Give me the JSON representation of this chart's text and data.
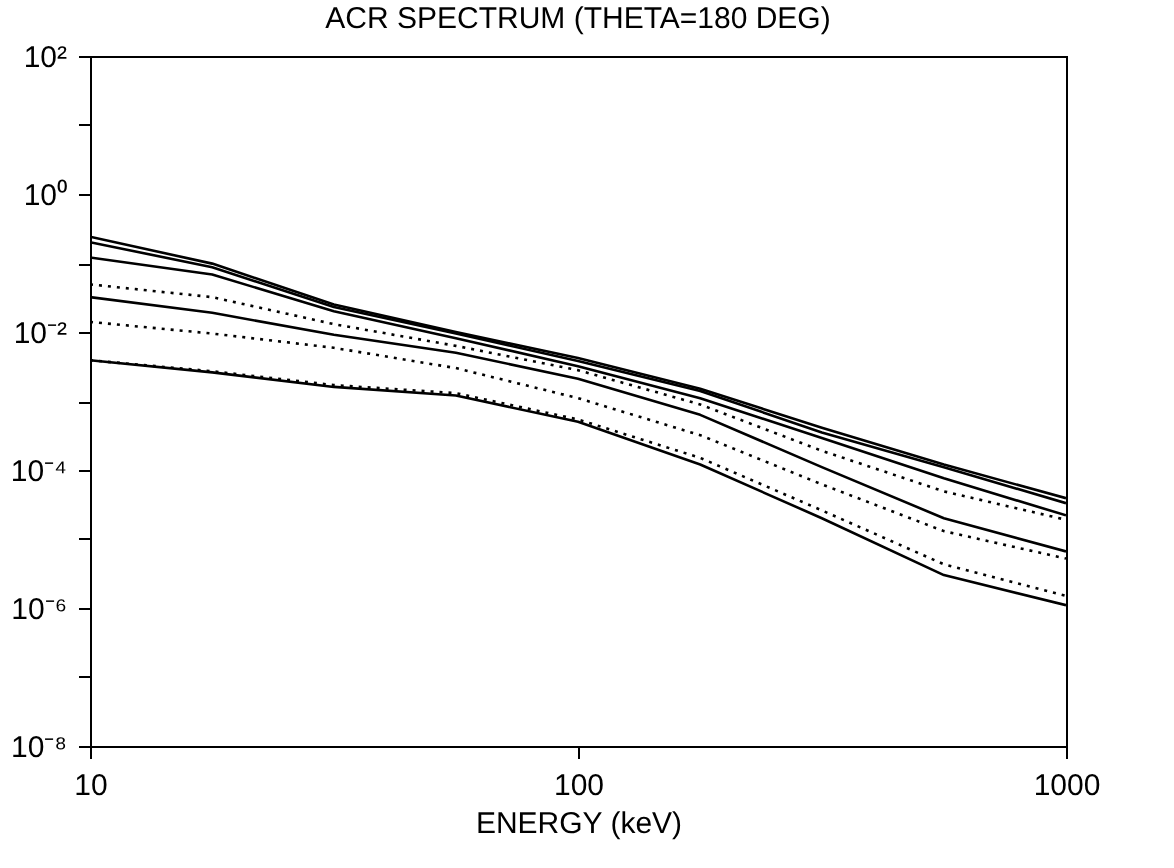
{
  "chart_data": {
    "type": "line",
    "title": "ACR SPECTRUM (THETA=180 DEG)",
    "xlabel": "ENERGY (keV)",
    "log": "xy",
    "grid": false,
    "x": [
      10,
      17.8,
      31.6,
      56.2,
      100,
      178,
      316,
      562,
      1000
    ],
    "xlim": [
      10,
      1000
    ],
    "xticks": [
      10,
      100,
      1000
    ],
    "ylim": [
      1e-08,
      100
    ],
    "yticks": [
      {
        "value": 1e-08,
        "label": "10⁻⁸"
      },
      {
        "value": 1e-07,
        "label": null
      },
      {
        "value": 1e-06,
        "label": "10⁻⁶"
      },
      {
        "value": 1e-05,
        "label": null
      },
      {
        "value": 0.0001,
        "label": "10⁻⁴"
      },
      {
        "value": 0.001,
        "label": null
      },
      {
        "value": 0.01,
        "label": "10⁻²"
      },
      {
        "value": 0.1,
        "label": null
      },
      {
        "value": 1,
        "label": "10⁰"
      },
      {
        "value": 10,
        "label": null
      },
      {
        "value": 100,
        "label": "10²"
      }
    ],
    "series": [
      {
        "color": "#000000",
        "line_style": "solid",
        "values": [
          0.24,
          0.098,
          0.025,
          0.01,
          0.0042,
          0.0015,
          0.00041,
          0.00012,
          3.9e-05
        ]
      },
      {
        "color": "#000000",
        "line_style": "solid",
        "values": [
          0.2,
          0.087,
          0.023,
          0.0095,
          0.0038,
          0.0014,
          0.00035,
          0.00011,
          3.3e-05
        ]
      },
      {
        "color": "#000000",
        "line_style": "solid",
        "values": [
          0.12,
          0.068,
          0.02,
          0.0081,
          0.0032,
          0.0011,
          0.00029,
          7.6e-05,
          2.2e-05
        ]
      },
      {
        "color": "#000000",
        "line_style": "dotted",
        "values": [
          0.049,
          0.032,
          0.013,
          0.0063,
          0.0028,
          0.00089,
          0.00019,
          4.9e-05,
          1.9e-05
        ]
      },
      {
        "color": "#000000",
        "line_style": "solid",
        "values": [
          0.032,
          0.019,
          0.0091,
          0.005,
          0.0021,
          0.00063,
          0.00011,
          2e-05,
          6.6e-06
        ]
      },
      {
        "color": "#000000",
        "line_style": "dotted",
        "values": [
          0.014,
          0.0095,
          0.0059,
          0.003,
          0.0011,
          0.00032,
          6.2e-05,
          1.3e-05,
          5.2e-06
        ]
      },
      {
        "color": "#000000",
        "line_style": "dotted",
        "values": [
          0.0039,
          0.0027,
          0.0017,
          0.0013,
          0.00054,
          0.00015,
          2.6e-05,
          4.3e-06,
          1.5e-06
        ]
      },
      {
        "color": "#000000",
        "line_style": "solid",
        "values": [
          0.0039,
          0.0026,
          0.0016,
          0.0012,
          0.0005,
          0.00012,
          2e-05,
          3e-06,
          1.1e-06
        ]
      }
    ]
  }
}
